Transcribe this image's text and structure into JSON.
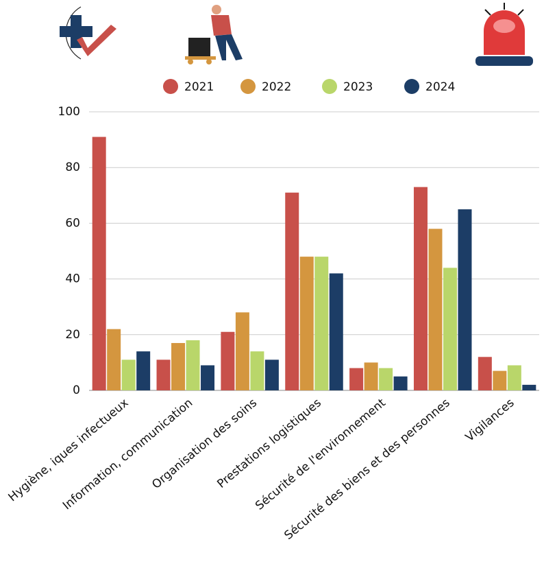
{
  "chart_data": {
    "type": "bar",
    "categories": [
      "Hygiène, iques infectueux",
      "Information, communication",
      "Organisation des soins",
      "Prestations logistiques",
      "Sécurité de l'environnement",
      "Sécurité des biens et des personnes",
      "Vigilances"
    ],
    "series": [
      {
        "name": "2021",
        "color": "#c8504a",
        "values": [
          91,
          11,
          21,
          71,
          8,
          73,
          12
        ]
      },
      {
        "name": "2022",
        "color": "#d4963f",
        "values": [
          22,
          17,
          28,
          48,
          10,
          58,
          7
        ]
      },
      {
        "name": "2023",
        "color": "#b9d66a",
        "values": [
          11,
          18,
          14,
          48,
          8,
          44,
          9
        ]
      },
      {
        "name": "2024",
        "color": "#1c3d66",
        "values": [
          14,
          9,
          11,
          42,
          5,
          65,
          2
        ]
      }
    ],
    "ylim": [
      0,
      100
    ],
    "yticks": [
      0,
      20,
      40,
      60,
      80,
      100
    ],
    "grid": true
  }
}
